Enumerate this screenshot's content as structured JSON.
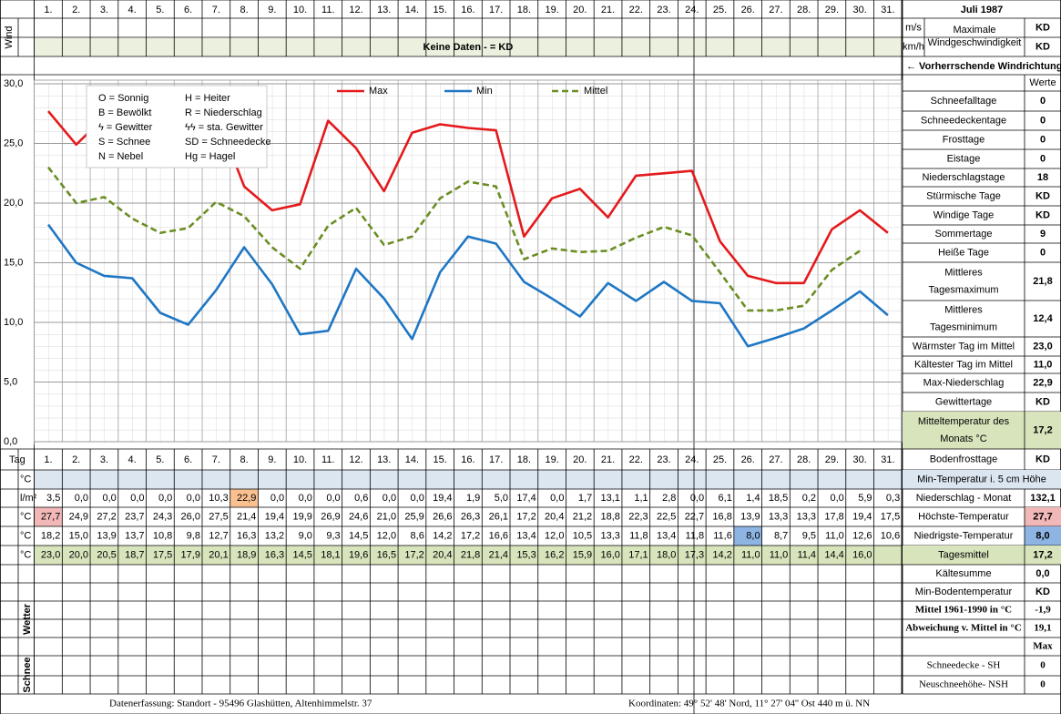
{
  "header": {
    "title": "Juli 1987"
  },
  "wind": {
    "label": "Wind",
    "message": "Keine Daten -  = KD",
    "units": [
      "m/s",
      "km/h"
    ],
    "caption": [
      "Maximale",
      "Windgeschwindigkeit"
    ],
    "values": [
      "KD",
      "KD"
    ],
    "direction": "← Vorherrschende Windrichtung"
  },
  "chart_data": {
    "type": "line",
    "categories": [
      "1.",
      "2.",
      "3.",
      "4.",
      "5.",
      "6.",
      "7.",
      "8.",
      "9.",
      "10.",
      "11.",
      "12.",
      "13.",
      "14.",
      "15.",
      "16.",
      "17.",
      "18.",
      "19.",
      "20.",
      "21.",
      "22.",
      "23.",
      "24.",
      "25.",
      "26.",
      "27.",
      "28.",
      "29.",
      "30.",
      "31."
    ],
    "ylim": [
      0,
      30
    ],
    "yticks": [
      {
        "value": 0,
        "label": "0,0"
      },
      {
        "value": 5,
        "label": "5,0"
      },
      {
        "value": 10,
        "label": "10,0"
      },
      {
        "value": 15,
        "label": "15,0"
      },
      {
        "value": 20,
        "label": "20,0"
      },
      {
        "value": 25,
        "label": "25,0"
      },
      {
        "value": 30,
        "label": "30,0"
      }
    ],
    "grid": true,
    "series": [
      {
        "name": "Max",
        "color": "#e41a1c",
        "style": "solid",
        "values": [
          27.7,
          24.9,
          27.2,
          23.7,
          24.3,
          26.0,
          27.5,
          21.4,
          19.4,
          19.9,
          26.9,
          24.6,
          21.0,
          25.9,
          26.6,
          26.3,
          26.1,
          17.2,
          20.4,
          21.2,
          18.8,
          22.3,
          22.5,
          22.7,
          16.8,
          13.9,
          13.3,
          13.3,
          17.8,
          19.4,
          17.5
        ],
        "value_labels": [
          "27,7",
          "24,9",
          "27,2",
          "23,7",
          "24,3",
          "26,0",
          "27,5",
          "21,4",
          "19,4",
          "19,9",
          "26,9",
          "24,6",
          "21,0",
          "25,9",
          "26,6",
          "26,3",
          "26,1",
          "17,2",
          "20,4",
          "21,2",
          "18,8",
          "22,3",
          "22,5",
          "22,7",
          "16,8",
          "13,9",
          "13,3",
          "13,3",
          "17,8",
          "19,4",
          "17,5"
        ]
      },
      {
        "name": "Min",
        "color": "#1f77c4",
        "style": "solid",
        "values": [
          18.2,
          15.0,
          13.9,
          13.7,
          10.8,
          9.8,
          12.7,
          16.3,
          13.2,
          9.0,
          9.3,
          14.5,
          12.0,
          8.6,
          14.2,
          17.2,
          16.6,
          13.4,
          12.0,
          10.5,
          13.3,
          11.8,
          13.4,
          11.8,
          11.6,
          8.0,
          8.7,
          9.5,
          11.0,
          12.6,
          10.6
        ],
        "value_labels": [
          "18,2",
          "15,0",
          "13,9",
          "13,7",
          "10,8",
          "9,8",
          "12,7",
          "16,3",
          "13,2",
          "9,0",
          "9,3",
          "14,5",
          "12,0",
          "8,6",
          "14,2",
          "17,2",
          "16,6",
          "13,4",
          "12,0",
          "10,5",
          "13,3",
          "11,8",
          "13,4",
          "11,8",
          "11,6",
          "8,0",
          "8,7",
          "9,5",
          "11,0",
          "12,6",
          "10,6"
        ]
      },
      {
        "name": "Mittel",
        "color": "#6b8e23",
        "style": "dashed",
        "values": [
          23.0,
          20.0,
          20.5,
          18.7,
          17.5,
          17.9,
          20.1,
          18.9,
          16.3,
          14.5,
          18.1,
          19.6,
          16.5,
          17.2,
          20.4,
          21.8,
          21.4,
          15.3,
          16.2,
          15.9,
          16.0,
          17.1,
          18.0,
          17.3,
          14.2,
          11.0,
          11.0,
          11.4,
          14.4,
          16.0,
          null
        ],
        "value_labels": [
          "23,0",
          "20,0",
          "20,5",
          "18,7",
          "17,5",
          "17,9",
          "20,1",
          "18,9",
          "16,3",
          "14,5",
          "18,1",
          "19,6",
          "16,5",
          "17,2",
          "20,4",
          "21,8",
          "21,4",
          "15,3",
          "16,2",
          "15,9",
          "16,0",
          "17,1",
          "18,0",
          "17,3",
          "14,2",
          "11,0",
          "11,0",
          "11,4",
          "14,4",
          "16,0",
          null
        ]
      }
    ]
  },
  "weather_codes": [
    [
      "O = Sonnig",
      "H = Heiter"
    ],
    [
      "B = Bewölkt",
      "R = Niederschlag"
    ],
    [
      "ϟ = Gewitter",
      "ϟϟ = sta. Gewitter"
    ],
    [
      "S = Schnee",
      "SD = Schneedecke"
    ],
    [
      "N = Nebel",
      "Hg = Hagel"
    ]
  ],
  "table": {
    "tag": "Tag",
    "units": [
      "°C",
      "l/m²",
      "°C",
      "°C",
      "°C"
    ],
    "precipitation": [
      "3,5",
      "0,0",
      "0,0",
      "0,0",
      "0,0",
      "0,0",
      "10,3",
      "22,9",
      "0,0",
      "0,0",
      "0,0",
      "0,6",
      "0,0",
      "0,0",
      "19,4",
      "1,9",
      "5,0",
      "17,4",
      "0,0",
      "1,7",
      "13,1",
      "1,1",
      "2,8",
      "0,0",
      "6,1",
      "1,4",
      "18,5",
      "0,2",
      "0,0",
      "5,9",
      "0,3"
    ],
    "weather_label": "Wetter",
    "snow_label": "Schnee"
  },
  "stats": {
    "header": "Werte",
    "rows": [
      {
        "label": "Schneefalltage",
        "value": "0"
      },
      {
        "label": "Schneedeckentage",
        "value": "0"
      },
      {
        "label": "Frosttage",
        "value": "0"
      },
      {
        "label": "Eistage",
        "value": "0"
      },
      {
        "label": "Niederschlagstage",
        "value": "18"
      },
      {
        "label": "Stürmische Tage",
        "value": "KD"
      },
      {
        "label": "Windige Tage",
        "value": "KD"
      },
      {
        "label": "Sommertage",
        "value": "9"
      },
      {
        "label": "Heiße Tage",
        "value": "0"
      },
      {
        "label": [
          "Mittleres",
          "Tagesmaximum"
        ],
        "value": "21,8"
      },
      {
        "label": [
          "Mittleres",
          "Tagesminimum"
        ],
        "value": "12,4"
      },
      {
        "label": "Wärmster Tag im Mittel",
        "value": "23,0"
      },
      {
        "label": "Kältester Tag im Mittel",
        "value": "11,0"
      },
      {
        "label": "Max-Niederschlag",
        "value": "22,9"
      },
      {
        "label": "Gewittertage",
        "value": "KD"
      },
      {
        "label": [
          "Mitteltemperatur des",
          "Monats °C"
        ],
        "value": "17,2"
      },
      {
        "label": "Bodenfrosttage",
        "value": "KD"
      },
      {
        "label": "Min-Temperatur i. 5 cm Höhe",
        "value": null
      },
      {
        "label": "Niederschlag - Monat",
        "value": "132,1"
      },
      {
        "label": "Höchste-Temperatur",
        "value": "27,7"
      },
      {
        "label": "Niedrigste-Temperatur",
        "value": "8,0"
      },
      {
        "label": "Tagesmittel",
        "value": "17,2"
      },
      {
        "label": "Kältesumme",
        "value": "0,0"
      },
      {
        "label": "Min-Bodentemperatur",
        "value": "KD"
      },
      {
        "label": "Mittel 1961-1990 in °C",
        "value": "-1,9"
      },
      {
        "label": "Abweichung v. Mittel in °C",
        "value": "19,1"
      },
      {
        "label": null,
        "value": "Max"
      },
      {
        "label": "Schneedecke -   SH",
        "value": "0"
      },
      {
        "label": "Neuschneehöhe- NSH",
        "value": "0"
      }
    ]
  },
  "footer": {
    "left": "Datenerfassung:  Standort -  95496  Glashütten, Altenhimmelstr. 37",
    "right": "Koordinaten:  49° 52' 48' Nord,  11° 27' 04'' Ost   440 m ü. NN"
  }
}
